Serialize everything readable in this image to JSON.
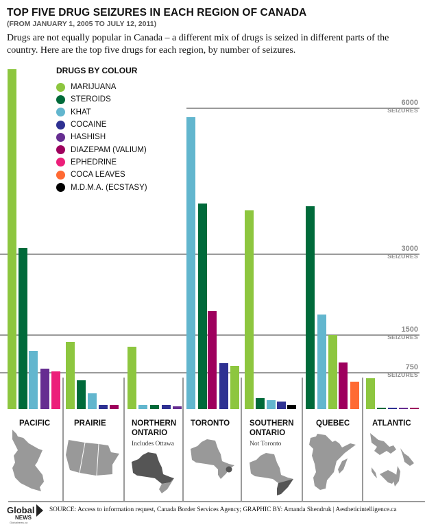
{
  "header": {
    "title": "TOP FIVE DRUG SEIZURES IN EACH REGION OF CANADA",
    "subtitle": "(FROM JANUARY 1, 2005 TO JULY 12, 2011)",
    "intro": "Drugs are not equally popular in Canada – a different mix of drugs is seized in different parts of the country. Here are the top five drugs for each region, by number of seizures."
  },
  "legend": {
    "title": "DRUGS BY COLOUR",
    "items": [
      {
        "label": "MARIJUANA",
        "color": "#8dc63f"
      },
      {
        "label": "STEROIDS",
        "color": "#006a3a"
      },
      {
        "label": "KHAT",
        "color": "#62b6ce"
      },
      {
        "label": "COCAINE",
        "color": "#2e3192"
      },
      {
        "label": "HASHISH",
        "color": "#662d91"
      },
      {
        "label": "DIAZEPAM (VALIUM)",
        "color": "#9e005d"
      },
      {
        "label": "EPHEDRINE",
        "color": "#ec1f7a"
      },
      {
        "label": "COCA LEAVES",
        "color": "#ff6a33"
      },
      {
        "label": "M.D.M.A. (ECSTASY)",
        "color": "#000000"
      }
    ]
  },
  "gridlines": [
    {
      "value": 6000,
      "num": "6000",
      "unit": "SEIZURES"
    },
    {
      "value": 3000,
      "num": "3000",
      "unit": "SEIZURES"
    },
    {
      "value": 1500,
      "num": "1500",
      "unit": "SEIZURES"
    },
    {
      "value": 750,
      "num": "750",
      "unit": "SEIZURES"
    }
  ],
  "chart_data": {
    "type": "bar",
    "title": "TOP FIVE DRUG SEIZURES IN EACH REGION OF CANADA",
    "subtitle": "(FROM JANUARY 1, 2005 TO JULY 12, 2011)",
    "xlabel": "",
    "ylabel": "Seizures",
    "ylim": [
      0,
      6000
    ],
    "y_ticks": [
      750,
      1500,
      3000,
      6000
    ],
    "grid": true,
    "legend_position": "top-left",
    "categories": [
      "PACIFIC",
      "PRAIRIE",
      "NORTHERN ONTARIO",
      "TORONTO",
      "SOUTHERN ONTARIO",
      "QUEBEC",
      "ATLANTIC"
    ],
    "regions": [
      {
        "name": "PACIFIC",
        "bars": [
          {
            "drug": "MARIJUANA",
            "value": 6800
          },
          {
            "drug": "STEROIDS",
            "value": 3130
          },
          {
            "drug": "KHAT",
            "value": 1180
          },
          {
            "drug": "HASHISH",
            "value": 830
          },
          {
            "drug": "EPHEDRINE",
            "value": 780
          }
        ]
      },
      {
        "name": "PRAIRIE",
        "bars": [
          {
            "drug": "MARIJUANA",
            "value": 1360
          },
          {
            "drug": "STEROIDS",
            "value": 600
          },
          {
            "drug": "KHAT",
            "value": 330
          },
          {
            "drug": "COCAINE",
            "value": 80
          },
          {
            "drug": "DIAZEPAM (VALIUM)",
            "value": 80
          }
        ]
      },
      {
        "name": "NORTHERN ONTARIO",
        "note": "Includes Ottawa",
        "bars": [
          {
            "drug": "MARIJUANA",
            "value": 1270
          },
          {
            "drug": "KHAT",
            "value": 80
          },
          {
            "drug": "STEROIDS",
            "value": 80
          },
          {
            "drug": "COCAINE",
            "value": 80
          },
          {
            "drug": "HASHISH",
            "value": 55
          }
        ]
      },
      {
        "name": "TORONTO",
        "bars": [
          {
            "drug": "KHAT",
            "value": 5810
          },
          {
            "drug": "STEROIDS",
            "value": 4040
          },
          {
            "drug": "DIAZEPAM (VALIUM)",
            "value": 1950
          },
          {
            "drug": "COCAINE",
            "value": 940
          },
          {
            "drug": "MARIJUANA",
            "value": 880
          }
        ]
      },
      {
        "name": "SOUTHERN ONTARIO",
        "note": "Not Toronto",
        "bars": [
          {
            "drug": "MARIJUANA",
            "value": 3900
          },
          {
            "drug": "STEROIDS",
            "value": 220
          },
          {
            "drug": "KHAT",
            "value": 180
          },
          {
            "drug": "COCAINE",
            "value": 150
          },
          {
            "drug": "M.D.M.A. (ECSTASY)",
            "value": 80
          }
        ]
      },
      {
        "name": "QUEBEC",
        "bars": [
          {
            "drug": "STEROIDS",
            "value": 3990
          },
          {
            "drug": "KHAT",
            "value": 1880
          },
          {
            "drug": "MARIJUANA",
            "value": 1500
          },
          {
            "drug": "DIAZEPAM (VALIUM)",
            "value": 950
          },
          {
            "drug": "COCA LEAVES",
            "value": 570
          }
        ]
      },
      {
        "name": "ATLANTIC",
        "bars": [
          {
            "drug": "MARIJUANA",
            "value": 630
          },
          {
            "drug": "STEROIDS",
            "value": 30
          },
          {
            "drug": "COCAINE",
            "value": 30
          },
          {
            "drug": "HASHISH",
            "value": 30
          },
          {
            "drug": "DIAZEPAM (VALIUM)",
            "value": 30
          }
        ]
      }
    ]
  },
  "regions": [
    {
      "label_line1": "PACIFIC",
      "label_line2": "",
      "note": ""
    },
    {
      "label_line1": "PRAIRIE",
      "label_line2": "",
      "note": ""
    },
    {
      "label_line1": "NORTHERN",
      "label_line2": "ONTARIO",
      "note": "Includes Ottawa"
    },
    {
      "label_line1": "TORONTO",
      "label_line2": "",
      "note": ""
    },
    {
      "label_line1": "SOUTHERN",
      "label_line2": "ONTARIO",
      "note": "Not Toronto"
    },
    {
      "label_line1": "QUEBEC",
      "label_line2": "",
      "note": ""
    },
    {
      "label_line1": "ATLANTIC",
      "label_line2": "",
      "note": ""
    }
  ],
  "footer": {
    "logo_main": "Global",
    "logo_sub": "NEWS",
    "logo_url": "Globalnews.ca",
    "source": "SOURCE: Access to information request, Canada Border Services Agency; GRAPHIC BY: Amanda Shendruk | Aestheticintelligence.ca"
  },
  "colors": {
    "map_fill": "#999999",
    "map_highlight": "#555555",
    "grid": "#9a9a9a"
  }
}
